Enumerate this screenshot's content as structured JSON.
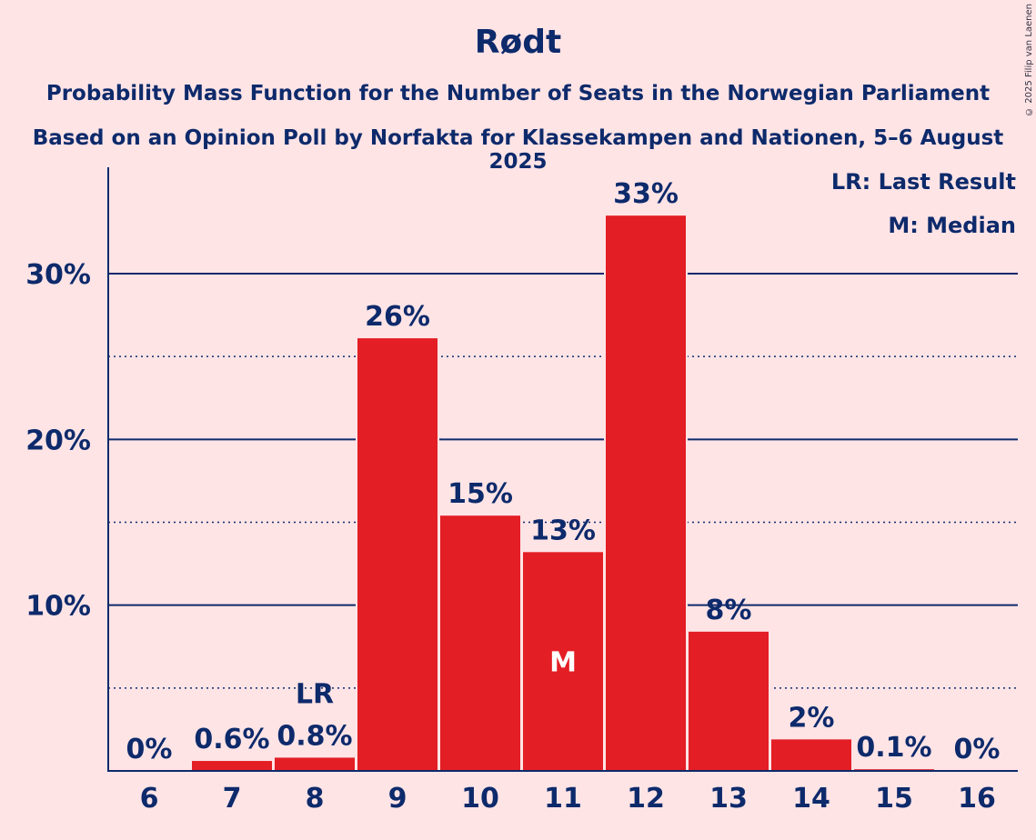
{
  "title": "Rødt",
  "subtitle_1": "Probability Mass Function for the Number of Seats in the Norwegian Parliament",
  "subtitle_2": "Based on an Opinion Poll by Norfakta for Klassekampen and Nationen, 5–6 August 2025",
  "copyright": "© 2025 Filip van Laenen",
  "legend": {
    "lr": "LR: Last Result",
    "m": "M: Median"
  },
  "colors": {
    "bar": "#e31e24",
    "text": "#0d2a6b",
    "background": "#ffe4e6"
  },
  "chart_data": {
    "type": "bar",
    "categories": [
      "6",
      "7",
      "8",
      "9",
      "10",
      "11",
      "12",
      "13",
      "14",
      "15",
      "16"
    ],
    "values": [
      0.0,
      0.6,
      0.8,
      26.1,
      15.4,
      13.2,
      33.5,
      8.4,
      1.9,
      0.1,
      0.0
    ],
    "labels": [
      "0%",
      "0.6%",
      "0.8%",
      "26%",
      "15%",
      "13%",
      "33%",
      "8%",
      "2%",
      "0.1%",
      "0%"
    ],
    "ylim": [
      0,
      36
    ],
    "yticks": [
      10,
      20,
      30
    ],
    "ytick_labels": [
      "10%",
      "20%",
      "30%"
    ],
    "minor_gridlines": [
      5,
      15,
      25
    ],
    "last_result": "8",
    "last_result_marker": "LR",
    "median": "11",
    "median_marker": "M",
    "grid": true,
    "legend_position": "top-right"
  }
}
